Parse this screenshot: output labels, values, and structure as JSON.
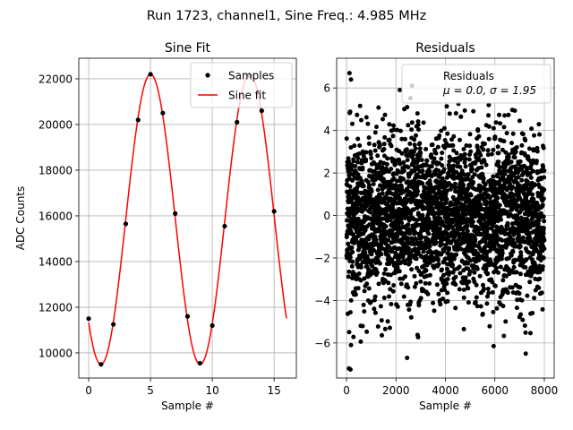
{
  "suptitle": "Run 1723, channel1, Sine Freq.: 4.985 MHz",
  "chart_data": [
    {
      "type": "line",
      "title": "Sine Fit",
      "xlabel": "Sample #",
      "ylabel": "ADC Counts",
      "xlim": [
        -0.8,
        16.8
      ],
      "ylim": [
        8900,
        22900
      ],
      "grid": true,
      "xticks": [
        0,
        5,
        10,
        15
      ],
      "yticks": [
        10000,
        12000,
        14000,
        16000,
        18000,
        20000,
        22000
      ],
      "legend_position": "top-right",
      "series": [
        {
          "name": "Samples",
          "kind": "scatter",
          "color": "#000000",
          "x": [
            0,
            1,
            2,
            3,
            4,
            5,
            6,
            7,
            8,
            9,
            10,
            11,
            12,
            13,
            14,
            15
          ],
          "y": [
            11500,
            9500,
            11250,
            15650,
            20200,
            22200,
            20500,
            16100,
            11600,
            9550,
            11200,
            15550,
            20100,
            22150,
            20600,
            16200
          ]
        },
        {
          "name": "Sine fit",
          "kind": "line",
          "color": "#ff0000",
          "model": {
            "offset": 15850,
            "amplitude": 6350,
            "period": 8.025,
            "phase_zero_x": 3.0,
            "x_start": 0,
            "x_end": 16
          }
        }
      ]
    },
    {
      "type": "scatter",
      "title": "Residuals",
      "xlabel": "Sample #",
      "ylabel": "",
      "xlim": [
        -400,
        8400
      ],
      "ylim": [
        -7.65,
        7.4
      ],
      "grid": true,
      "xticks": [
        0,
        2000,
        4000,
        6000,
        8000
      ],
      "yticks": [
        -6,
        -4,
        -2,
        0,
        2,
        4,
        6
      ],
      "legend_position": "top-right",
      "legend_lines": [
        "Residuals",
        "μ = 0.0, σ = 1.95"
      ],
      "series": [
        {
          "name": "Residuals",
          "color": "#000000",
          "n_points": 8000,
          "mean": 0.0,
          "std": 1.95,
          "outliers": [
            {
              "x": 120,
              "y": 6.7
            },
            {
              "x": 180,
              "y": 6.4
            },
            {
              "x": 2650,
              "y": 6.1
            },
            {
              "x": 100,
              "y": -7.2
            },
            {
              "x": 160,
              "y": -7.25
            },
            {
              "x": 2450,
              "y": -6.7
            },
            {
              "x": 7250,
              "y": -6.5
            },
            {
              "x": 5950,
              "y": -6.15
            },
            {
              "x": 180,
              "y": -6.1
            }
          ]
        }
      ]
    }
  ]
}
